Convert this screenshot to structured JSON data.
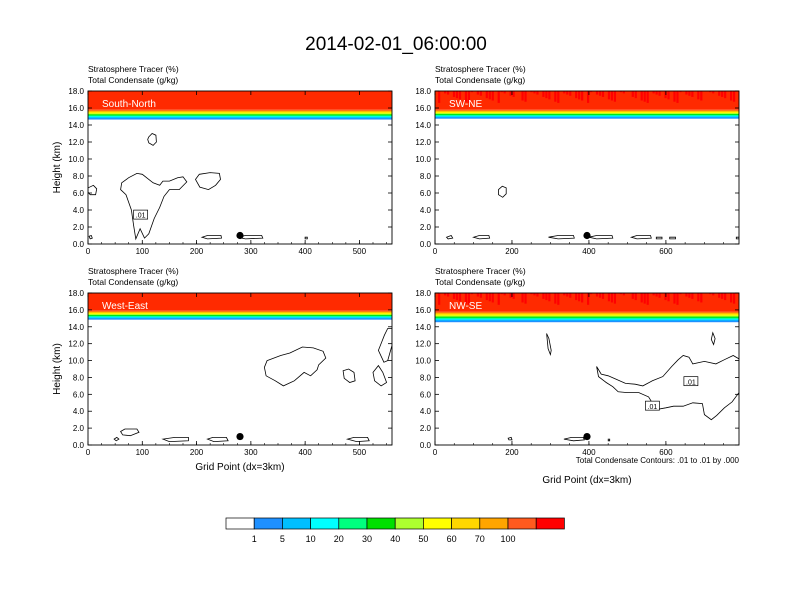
{
  "page_title": "2014-02-01_06:00:00",
  "colorbar": {
    "labels": [
      "1",
      "5",
      "10",
      "20",
      "30",
      "40",
      "50",
      "60",
      "70",
      "100"
    ],
    "colors": [
      "#ffffff",
      "#1e90ff",
      "#00bfff",
      "#00ffff",
      "#00ff7f",
      "#00e000",
      "#adff2f",
      "#ffff00",
      "#ffd700",
      "#ffa500",
      "#ff5a1e",
      "#ff0000"
    ]
  },
  "contour_note": "Total Condensate Contours: .01 to .01 by .000",
  "chart_data": [
    {
      "type": "contour",
      "id": "sn",
      "section_label": "South-North",
      "title_line1": "Stratosphere Tracer   (%)",
      "title_line2": "Total Condensate   (g/kg)",
      "ylabel": "Height (km)",
      "xlabel": "",
      "xlim": [
        0,
        560
      ],
      "ylim": [
        0,
        18
      ],
      "xticks": [
        "0",
        "100",
        "200",
        "300",
        "400",
        "500"
      ],
      "yticks": [
        "0.0",
        "2.0",
        "4.0",
        "6.0",
        "8.0",
        "10.0",
        "12.0",
        "14.0",
        "16.0",
        "18.0"
      ],
      "tracer_top_km": 15.8,
      "tracer_bottom_km": 14.7,
      "marker": {
        "x": 280,
        "height_km": 1.0
      },
      "contour_labels": [
        {
          "text": ".01",
          "x": 97,
          "height_km": 3.4
        }
      ]
    },
    {
      "type": "contour",
      "id": "swne",
      "section_label": "SW-NE",
      "title_line1": "Stratosphere Tracer   (%)",
      "title_line2": "Total Condensate   (g/kg)",
      "ylabel": "",
      "xlabel": "",
      "xlim": [
        0,
        790
      ],
      "ylim": [
        0,
        18
      ],
      "xticks": [
        "0",
        "200",
        "400",
        "600"
      ],
      "yticks": [
        "0.0",
        "2.0",
        "4.0",
        "6.0",
        "8.0",
        "10.0",
        "12.0",
        "14.0",
        "16.0",
        "18.0"
      ],
      "tracer_top_km": 15.8,
      "tracer_bottom_km": 14.8,
      "marker": {
        "x": 395,
        "height_km": 1.0
      },
      "contour_labels": []
    },
    {
      "type": "contour",
      "id": "we",
      "section_label": "West-East",
      "title_line1": "Stratosphere Tracer   (%)",
      "title_line2": "Total Condensate   (g/kg)",
      "ylabel": "Height (km)",
      "xlabel": "Grid Point (dx=3km)",
      "xlim": [
        0,
        560
      ],
      "ylim": [
        0,
        18
      ],
      "xticks": [
        "0",
        "100",
        "200",
        "300",
        "400",
        "500"
      ],
      "yticks": [
        "0.0",
        "2.0",
        "4.0",
        "6.0",
        "8.0",
        "10.0",
        "12.0",
        "14.0",
        "16.0",
        "18.0"
      ],
      "tracer_top_km": 15.9,
      "tracer_bottom_km": 14.9,
      "marker": {
        "x": 280,
        "height_km": 1.0
      },
      "contour_labels": []
    },
    {
      "type": "contour",
      "id": "nwse",
      "section_label": "NW-SE",
      "title_line1": "Stratosphere Tracer   (%)",
      "title_line2": "Total Condensate   (g/kg)",
      "ylabel": "",
      "xlabel": "Grid Point (dx=3km)",
      "xlim": [
        0,
        790
      ],
      "ylim": [
        0,
        18
      ],
      "xticks": [
        "0",
        "200",
        "400",
        "600"
      ],
      "yticks": [
        "0.0",
        "2.0",
        "4.0",
        "6.0",
        "8.0",
        "10.0",
        "12.0",
        "14.0",
        "16.0",
        "18.0"
      ],
      "tracer_top_km": 15.8,
      "tracer_bottom_km": 14.6,
      "marker": {
        "x": 395,
        "height_km": 1.0
      },
      "contour_labels": [
        {
          "text": ".01",
          "x": 665,
          "height_km": 7.5
        },
        {
          "text": ".01",
          "x": 565,
          "height_km": 4.6
        }
      ]
    }
  ]
}
